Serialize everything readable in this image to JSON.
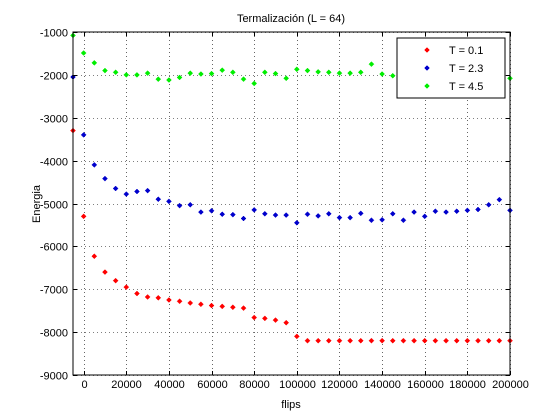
{
  "chart_data": {
    "type": "scatter",
    "title": "Termalización (L = 64)",
    "xlabel": "flips",
    "ylabel": "Energia",
    "xlim": [
      -5000,
      200000
    ],
    "ylim": [
      -9000,
      -1000
    ],
    "grid": true,
    "legend_position": "top-right",
    "xticks": [
      0,
      20000,
      40000,
      60000,
      80000,
      100000,
      120000,
      140000,
      160000,
      180000,
      200000
    ],
    "xtick_labels": [
      "0",
      "20000",
      "40000",
      "60000",
      "80000",
      "100000",
      "120000",
      "140000",
      "160000",
      "180000",
      "200000"
    ],
    "yticks": [
      -9000,
      -8000,
      -7000,
      -6000,
      -5000,
      -4000,
      -3000,
      -2000,
      -1000
    ],
    "ytick_labels": [
      "-9000",
      "-8000",
      "-7000",
      "-6000",
      "-5000",
      "-4000",
      "-3000",
      "-2000",
      "-1000"
    ],
    "x": [
      -5000,
      0,
      5000,
      10000,
      15000,
      20000,
      25000,
      30000,
      35000,
      40000,
      45000,
      50000,
      55000,
      60000,
      65000,
      70000,
      75000,
      80000,
      85000,
      90000,
      95000,
      100000,
      105000,
      110000,
      115000,
      120000,
      125000,
      130000,
      135000,
      140000,
      145000,
      150000,
      155000,
      160000,
      165000,
      170000,
      175000,
      180000,
      185000,
      190000,
      195000,
      200000
    ],
    "series": [
      {
        "name": "T = 0.1",
        "color": "#ff0000",
        "values": [
          -3300,
          -5300,
          -6230,
          -6600,
          -6800,
          -6950,
          -7100,
          -7180,
          -7200,
          -7250,
          -7280,
          -7320,
          -7350,
          -7380,
          -7400,
          -7420,
          -7440,
          -7660,
          -7680,
          -7720,
          -7780,
          -8100,
          -8200,
          -8200,
          -8200,
          -8200,
          -8200,
          -8200,
          -8200,
          -8200,
          -8200,
          -8200,
          -8200,
          -8200,
          -8200,
          -8200,
          -8200,
          -8200,
          -8200,
          -8200,
          -8200,
          -8200
        ]
      },
      {
        "name": "T = 2.3",
        "color": "#0000cc",
        "values": [
          -2050,
          -3400,
          -4100,
          -4420,
          -4650,
          -4780,
          -4720,
          -4700,
          -4900,
          -4950,
          -5050,
          -5030,
          -5200,
          -5170,
          -5250,
          -5260,
          -5350,
          -5150,
          -5240,
          -5270,
          -5270,
          -5450,
          -5250,
          -5290,
          -5240,
          -5330,
          -5330,
          -5230,
          -5390,
          -5380,
          -5240,
          -5390,
          -5200,
          -5300,
          -5180,
          -5200,
          -5180,
          -5160,
          -5140,
          -5030,
          -4910,
          -5160
        ]
      },
      {
        "name": "T = 4.5",
        "color": "#00ee00",
        "values": [
          -1080,
          -1490,
          -1720,
          -1900,
          -1940,
          -2000,
          -2000,
          -1960,
          -2100,
          -2120,
          -2060,
          -1960,
          -1980,
          -1970,
          -1890,
          -1940,
          -2100,
          -2200,
          -1940,
          -1970,
          -2080,
          -1870,
          -1900,
          -1930,
          -1940,
          -1960,
          -1960,
          -1940,
          -1750,
          -1980,
          -2020,
          -1960,
          -1980,
          -1940,
          -1950,
          -1900,
          -2000,
          -2010,
          -1990,
          -1960,
          -1950,
          -2080
        ]
      }
    ]
  }
}
